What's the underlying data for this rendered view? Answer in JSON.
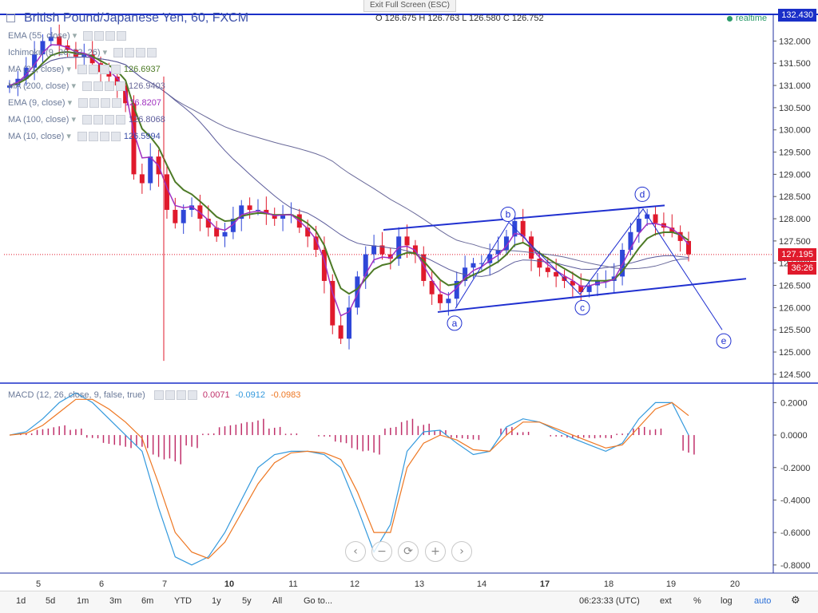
{
  "header": {
    "exit_fullscreen": "Exit Full Screen (ESC)",
    "symbol_title": "British Pound/Japanese Yen, 60, FXCM",
    "ohlc": "O 126.675  H 126.763  L 126.580  C 126.752",
    "realtime": "realtime"
  },
  "indicators": [
    {
      "label": "EMA (55, close)",
      "value": ""
    },
    {
      "label": "Ichimoku (9, 26, 52, 26)",
      "value": ""
    },
    {
      "label": "MA (21, close)",
      "value": "126.6937"
    },
    {
      "label": "MA (200, close)",
      "value": "126.9403"
    },
    {
      "label": "EMA (9, close)",
      "value": "126.8207"
    },
    {
      "label": "MA (100, close)",
      "value": "126.8068"
    },
    {
      "label": "MA (10, close)",
      "value": "126.5994"
    }
  ],
  "macd_legend": {
    "label": "MACD (12, 26, close, 9, false, true)",
    "hist": "0.0071",
    "macd": "-0.0912",
    "signal": "-0.0983"
  },
  "price_tags": {
    "top": "132.430",
    "current": "127.195",
    "countdown": "36:26"
  },
  "bottom_bar": {
    "timeframes": [
      "1d",
      "5d",
      "1m",
      "3m",
      "6m",
      "YTD",
      "1y",
      "5y",
      "All"
    ],
    "goto": "Go to...",
    "clock": "06:23:33 (UTC)",
    "ext": "ext",
    "percent": "%",
    "log": "log",
    "auto": "auto"
  },
  "zoom_controls": [
    "‹",
    "−",
    "⟳",
    "+",
    "›"
  ],
  "colors": {
    "up": "#2f47d8",
    "down": "#e01a2c",
    "ema55": "#4d7a26",
    "ma100": "#5a5a9a",
    "ma200": "#6a6a9a",
    "ema9": "#a030c0",
    "macd_line": "#3399dd",
    "signal_line": "#ee7722",
    "histogram": "#c0306a",
    "channel": "#2030d0",
    "accent": "#1a2fc8"
  },
  "chart_data": [
    {
      "type": "candlestick",
      "title": "British Pound/Japanese Yen, 60, FXCM",
      "x_tick_labels": [
        "5",
        "6",
        "7",
        "10",
        "11",
        "12",
        "13",
        "14",
        "17",
        "18",
        "19",
        "20"
      ],
      "ylim": [
        124.3,
        132.6
      ],
      "y_ticks": [
        132.0,
        131.5,
        131.0,
        130.5,
        130.0,
        129.5,
        129.0,
        128.5,
        128.0,
        127.5,
        127.0,
        126.5,
        126.0,
        125.5,
        125.0,
        124.5
      ],
      "current_price": 127.195,
      "closes": [
        131.0,
        131.15,
        131.4,
        131.7,
        132.0,
        132.1,
        131.9,
        131.8,
        131.65,
        131.7,
        131.5,
        131.3,
        131.2,
        131.0,
        130.6,
        129.0,
        128.8,
        129.4,
        129.0,
        128.2,
        127.9,
        128.2,
        128.3,
        128.0,
        127.8,
        127.6,
        127.7,
        128.0,
        128.3,
        128.2,
        128.2,
        128.1,
        128.0,
        128.1,
        128.1,
        127.8,
        127.6,
        127.3,
        126.6,
        125.6,
        125.3,
        126.0,
        126.7,
        127.2,
        127.4,
        127.2,
        127.1,
        127.6,
        127.4,
        127.2,
        126.6,
        126.3,
        126.1,
        126.2,
        126.6,
        126.9,
        127.0,
        127.0,
        127.2,
        127.3,
        127.6,
        127.95,
        127.6,
        127.1,
        126.9,
        126.8,
        126.7,
        126.6,
        126.5,
        126.35,
        126.5,
        126.6,
        126.6,
        126.7,
        127.3,
        127.7,
        128.0,
        128.1,
        127.9,
        127.8,
        127.7,
        127.5,
        127.2
      ]
    },
    {
      "type": "line",
      "title": "MACD (12, 26, close, 9, false, true)",
      "ylim": [
        -0.85,
        0.31
      ],
      "y_ticks": [
        0.2,
        0.0,
        -0.2,
        -0.4,
        -0.6,
        -0.8
      ],
      "series": [
        {
          "name": "MACD",
          "values": [
            0.0,
            0.02,
            0.1,
            0.2,
            0.26,
            0.2,
            0.1,
            0.0,
            -0.1,
            -0.45,
            -0.75,
            -0.8,
            -0.75,
            -0.6,
            -0.4,
            -0.2,
            -0.12,
            -0.1,
            -0.1,
            -0.12,
            -0.2,
            -0.45,
            -0.72,
            -0.55,
            -0.1,
            0.02,
            0.03,
            -0.05,
            -0.12,
            -0.1,
            0.05,
            0.1,
            0.08,
            0.03,
            -0.02,
            -0.06,
            -0.1,
            -0.05,
            0.1,
            0.2,
            0.2,
            0.0
          ]
        },
        {
          "name": "Signal",
          "values": [
            0.0,
            0.01,
            0.06,
            0.14,
            0.22,
            0.22,
            0.16,
            0.08,
            -0.02,
            -0.3,
            -0.6,
            -0.72,
            -0.76,
            -0.66,
            -0.48,
            -0.3,
            -0.17,
            -0.11,
            -0.1,
            -0.11,
            -0.15,
            -0.35,
            -0.6,
            -0.6,
            -0.2,
            -0.05,
            0.0,
            -0.03,
            -0.09,
            -0.1,
            0.0,
            0.08,
            0.08,
            0.04,
            0.0,
            -0.04,
            -0.08,
            -0.06,
            0.05,
            0.16,
            0.2,
            0.12
          ]
        }
      ],
      "histogram_values": [
        0.0,
        0.01,
        0.04,
        0.06,
        0.04,
        -0.02,
        -0.06,
        -0.08,
        -0.08,
        -0.15,
        -0.18,
        -0.08,
        0.01,
        0.06,
        0.08,
        0.1,
        0.05,
        0.01,
        0.0,
        -0.01,
        -0.05,
        -0.1,
        -0.12,
        0.05,
        0.1,
        0.07,
        0.03,
        -0.02,
        -0.03,
        0.0,
        0.05,
        0.02,
        0.0,
        -0.01,
        -0.02,
        -0.02,
        -0.02,
        0.01,
        0.05,
        0.04,
        0.0,
        -0.12
      ]
    }
  ],
  "annotations": {
    "wave_labels": [
      "a",
      "b",
      "c",
      "d",
      "e"
    ]
  }
}
